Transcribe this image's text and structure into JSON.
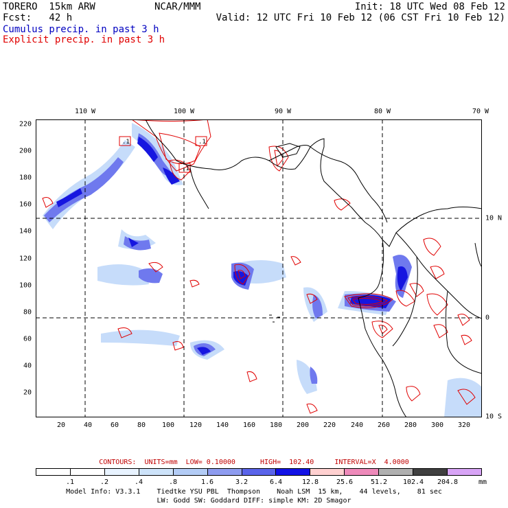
{
  "header": {
    "model": "TORERO  15km ARW",
    "org": "NCAR/MMM",
    "init": "Init: 18 UTC Wed 08 Feb 12",
    "fcst": "Fcst:   42 h",
    "valid": "Valid: 12 UTC Fri 10 Feb 12 (06 CST Fri 10 Feb 12)",
    "cumulus": "Cumulus precip. in past 3 h",
    "explicit": "Explicit precip. in past 3 h"
  },
  "colors": {
    "cumulus": "#0000c0",
    "explicit": "#e00000"
  },
  "longitude_labels": [
    "110 W",
    "100 W",
    "90 W",
    "80 W",
    "70 W"
  ],
  "latitude_labels": [
    "10 N",
    "0",
    "10 S"
  ],
  "x_ticks": [
    "20",
    "40",
    "60",
    "80",
    "100",
    "120",
    "140",
    "160",
    "180",
    "200",
    "220",
    "240",
    "260",
    "280",
    "300",
    "320"
  ],
  "y_ticks": [
    "220",
    "200",
    "180",
    "160",
    "140",
    "120",
    "100",
    "80",
    "60",
    "40",
    "20"
  ],
  "contour_box_labels": [
    ".1",
    ".1",
    ".1"
  ],
  "contours_line": "CONTOURS:  UNITS=mm  LOW= 0.10000      HIGH=  102.40     INTERVAL=X  4.0000",
  "colorbar": {
    "labels": [
      ".1",
      ".2",
      ".4",
      ".8",
      "1.6",
      "3.2",
      "6.4",
      "12.8",
      "25.6",
      "51.2",
      "102.4",
      "204.8"
    ],
    "colors": [
      "#ffffff",
      "#ffffff",
      "#e8f3ff",
      "#cde3fa",
      "#b3ccf6",
      "#8e9cf0",
      "#5a64ea",
      "#1212e6",
      "#ffd0d0",
      "#ee8aba",
      "#b0b0b0",
      "#404040",
      "#d8a4f6"
    ],
    "unit": "mm"
  },
  "footer": {
    "line1": "Model Info: V3.3.1    Tiedtke YSU PBL  Thompson    Noah LSM  15 km,    44 levels,    81 sec",
    "line2": "LW: Godd SW: Goddard DIFF: simple KM: 2D Smagor"
  }
}
